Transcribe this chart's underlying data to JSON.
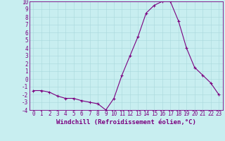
{
  "hours": [
    0,
    1,
    2,
    3,
    4,
    5,
    6,
    7,
    8,
    9,
    10,
    11,
    12,
    13,
    14,
    15,
    16,
    17,
    18,
    19,
    20,
    21,
    22,
    23
  ],
  "values": [
    -1.5,
    -1.5,
    -1.7,
    -2.2,
    -2.5,
    -2.5,
    -2.8,
    -3.0,
    -3.2,
    -4.0,
    -2.5,
    0.5,
    3.0,
    5.5,
    8.5,
    9.5,
    10.0,
    10.0,
    7.5,
    4.0,
    1.5,
    0.5,
    -0.5,
    -2.0
  ],
  "line_color": "#7b0080",
  "bg_color": "#c8eef0",
  "grid_color": "#a8d8dc",
  "xlabel": "Windchill (Refroidissement éolien,°C)",
  "ylim": [
    -4,
    10
  ],
  "yticks": [
    -4,
    -3,
    -2,
    -1,
    0,
    1,
    2,
    3,
    4,
    5,
    6,
    7,
    8,
    9,
    10
  ],
  "xticks": [
    0,
    1,
    2,
    3,
    4,
    5,
    6,
    7,
    8,
    9,
    10,
    11,
    12,
    13,
    14,
    15,
    16,
    17,
    18,
    19,
    20,
    21,
    22,
    23
  ],
  "marker": "+",
  "marker_size": 3,
  "linewidth": 0.8,
  "xlabel_fontsize": 6.5,
  "tick_fontsize": 5.5
}
